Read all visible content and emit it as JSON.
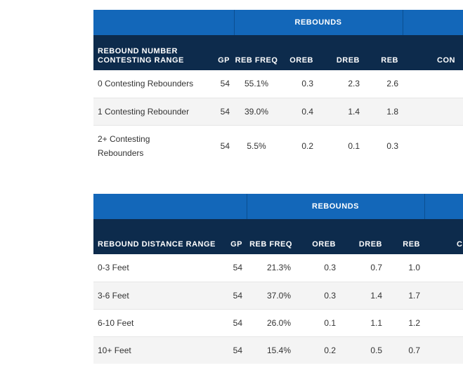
{
  "table1": {
    "group_label": "REBOUNDS",
    "columns": {
      "range": "REBOUND NUMBER CONTESTING RANGE",
      "gp": "GP",
      "freq": "REB FREQ",
      "oreb": "OREB",
      "dreb": "DREB",
      "reb": "REB",
      "cut": "CON"
    },
    "rows": [
      {
        "range": "0 Contesting Rebounders",
        "gp": "54",
        "freq": "55.1%",
        "oreb": "0.3",
        "dreb": "2.3",
        "reb": "2.6"
      },
      {
        "range": "1 Contesting Rebounder",
        "gp": "54",
        "freq": "39.0%",
        "oreb": "0.4",
        "dreb": "1.4",
        "reb": "1.8"
      },
      {
        "range": "2+ Contesting Rebounders",
        "gp": "54",
        "freq": "5.5%",
        "oreb": "0.2",
        "dreb": "0.1",
        "reb": "0.3"
      }
    ]
  },
  "table2": {
    "group_label": "REBOUNDS",
    "columns": {
      "range": "REBOUND DISTANCE RANGE",
      "gp": "GP",
      "freq": "REB FREQ",
      "oreb": "OREB",
      "dreb": "DREB",
      "reb": "REB",
      "cut": "C"
    },
    "rows": [
      {
        "range": "0-3 Feet",
        "gp": "54",
        "freq": "21.3%",
        "oreb": "0.3",
        "dreb": "0.7",
        "reb": "1.0"
      },
      {
        "range": "3-6 Feet",
        "gp": "54",
        "freq": "37.0%",
        "oreb": "0.3",
        "dreb": "1.4",
        "reb": "1.7"
      },
      {
        "range": "6-10 Feet",
        "gp": "54",
        "freq": "26.0%",
        "oreb": "0.1",
        "dreb": "1.1",
        "reb": "1.2"
      },
      {
        "range": "10+ Feet",
        "gp": "54",
        "freq": "15.4%",
        "oreb": "0.2",
        "dreb": "0.5",
        "reb": "0.7"
      }
    ]
  }
}
